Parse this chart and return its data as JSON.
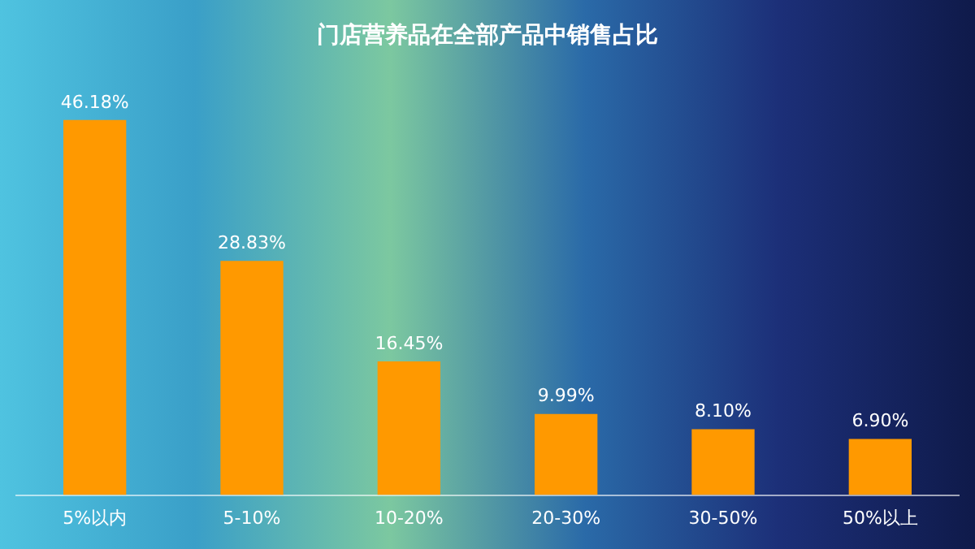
{
  "chart_data": {
    "type": "bar",
    "title": "门店营养品在全部产品中销售占比",
    "categories": [
      "5%以内",
      "5-10%",
      "10-20%",
      "20-30%",
      "30-50%",
      "50%以上"
    ],
    "values": [
      46.18,
      28.83,
      16.45,
      9.99,
      8.1,
      6.9
    ],
    "value_labels": [
      "46.18%",
      "28.83%",
      "16.45%",
      "9.99%",
      "8.10%",
      "6.90%"
    ],
    "color": "#ff9900",
    "grid": false,
    "legend": false
  }
}
